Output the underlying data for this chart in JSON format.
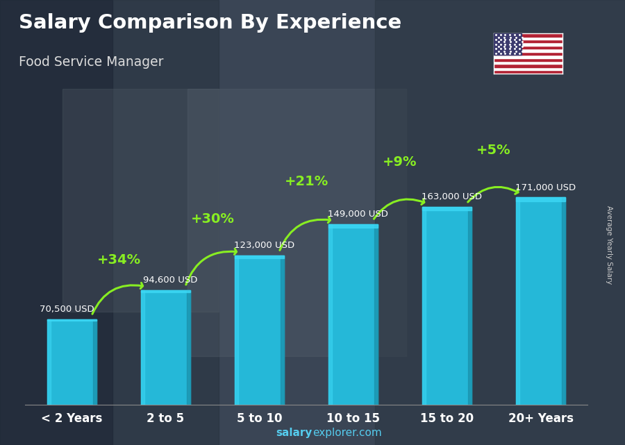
{
  "title": "Salary Comparison By Experience",
  "subtitle": "Food Service Manager",
  "categories": [
    "< 2 Years",
    "2 to 5",
    "5 to 10",
    "10 to 15",
    "15 to 20",
    "20+ Years"
  ],
  "values": [
    70500,
    94600,
    123000,
    149000,
    163000,
    171000
  ],
  "value_labels": [
    "70,500 USD",
    "94,600 USD",
    "123,000 USD",
    "149,000 USD",
    "163,000 USD",
    "171,000 USD"
  ],
  "pct_changes": [
    "+34%",
    "+30%",
    "+21%",
    "+9%",
    "+5%"
  ],
  "bar_color_top": "#3dd8f5",
  "bar_color_mid": "#25b8d8",
  "bar_color_dark": "#1a90aa",
  "pct_color": "#88ee22",
  "background_color": "#3a4a55",
  "title_color": "#ffffff",
  "subtitle_color": "#dddddd",
  "value_label_color": "#ffffff",
  "cat_label_color": "#ffffff",
  "ylabel": "Average Yearly Salary",
  "footer_salary": "salary",
  "footer_rest": "explorer.com",
  "ylim_max": 220000,
  "bar_width": 0.52
}
